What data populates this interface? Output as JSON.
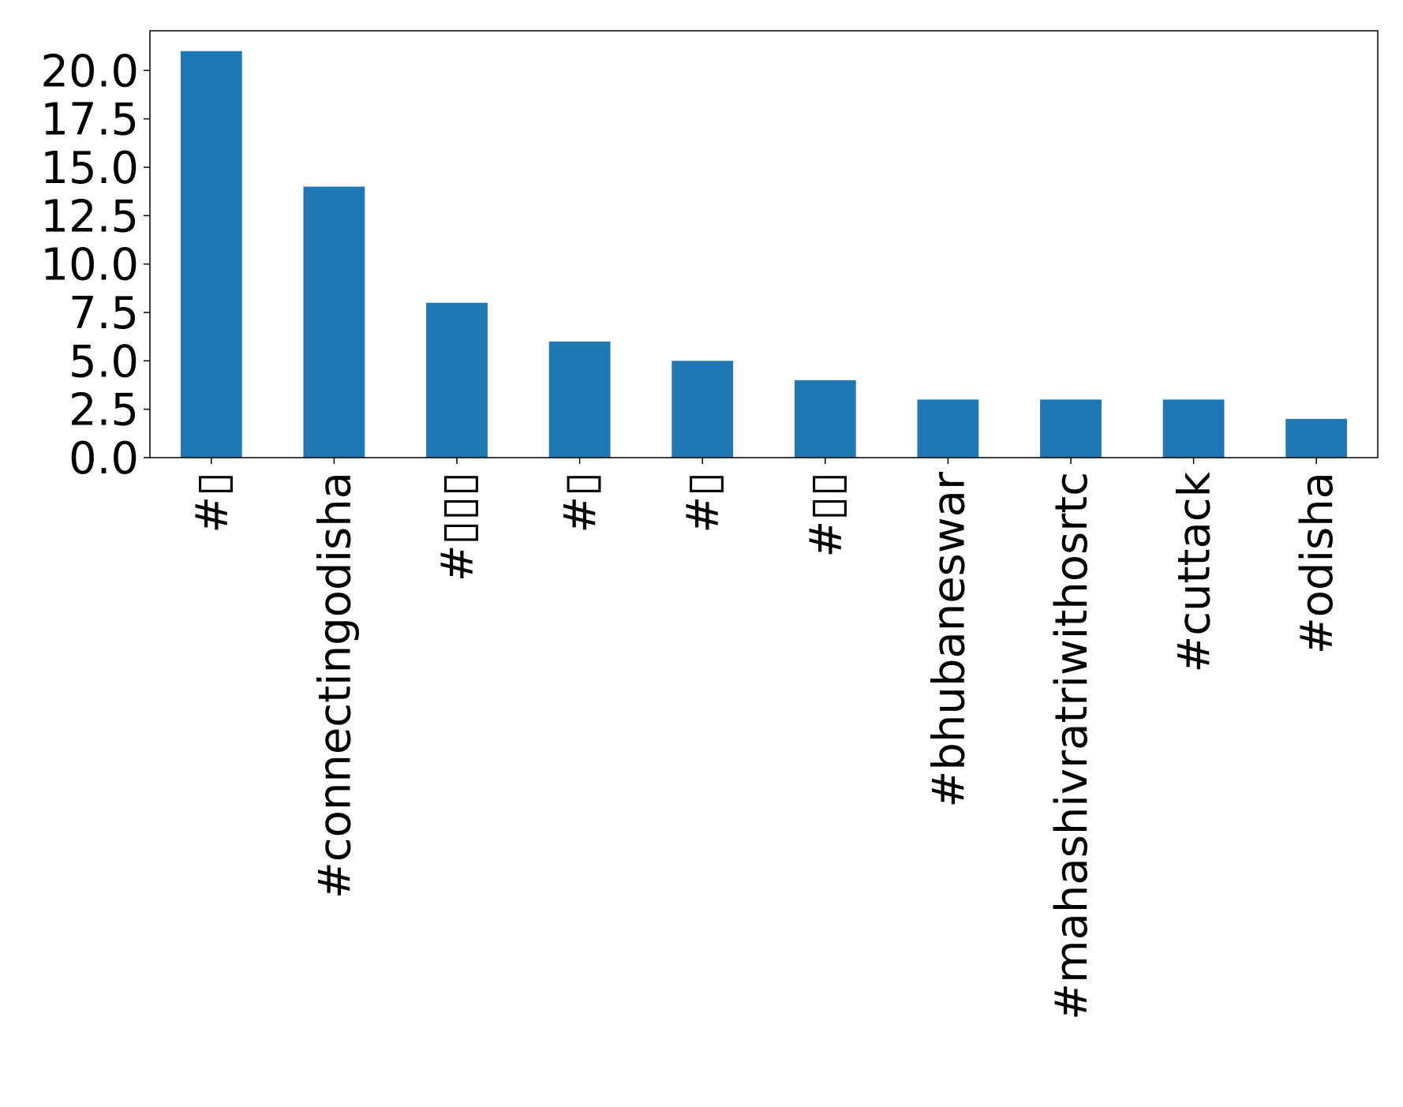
{
  "chart_data": {
    "type": "bar",
    "title": "",
    "xlabel": "",
    "ylabel": "",
    "categories": [
      "#▯",
      "#connectingodisha",
      "#▯▯▯",
      "#▯",
      "#▯",
      "#▯▯",
      "#bhubaneswar",
      "#mahashivratriwithosrtc",
      "#cuttack",
      "#odisha"
    ],
    "values": [
      21,
      14,
      8,
      6,
      5,
      4,
      3,
      3,
      3,
      2
    ],
    "ylim": [
      0,
      22.05
    ],
    "yticks": [
      "0.0",
      "2.5",
      "5.0",
      "7.5",
      "10.0",
      "12.5",
      "15.0",
      "17.5",
      "20.0"
    ],
    "bar_color": "#1f77b4",
    "grid": false,
    "legend": "none"
  }
}
